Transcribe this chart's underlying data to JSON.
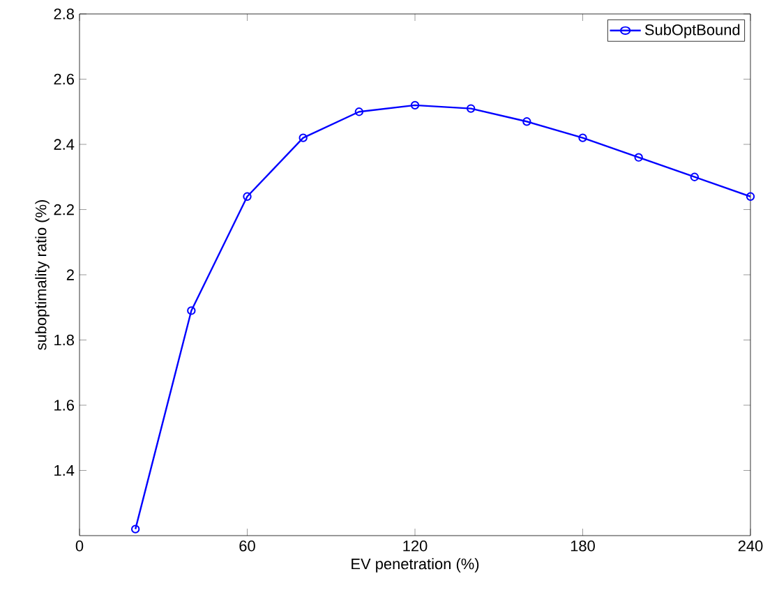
{
  "chart_data": {
    "type": "line",
    "xlabel": "EV penetration (%)",
    "ylabel": "suboptimality ratio (%)",
    "x": [
      20,
      40,
      60,
      80,
      100,
      120,
      140,
      160,
      180,
      200,
      220,
      240
    ],
    "series": [
      {
        "name": "SubOptBound",
        "color": "#0000ff",
        "values": [
          1.22,
          1.89,
          2.24,
          2.42,
          2.5,
          2.52,
          2.51,
          2.47,
          2.42,
          2.36,
          2.3,
          2.24
        ]
      }
    ],
    "xlim": [
      0,
      240
    ],
    "ylim": [
      1.2,
      2.8
    ],
    "xticks": [
      0,
      60,
      120,
      180,
      240
    ],
    "yticks": [
      1.4,
      1.6,
      1.8,
      2,
      2.2,
      2.4,
      2.6,
      2.8
    ],
    "legend": "top right",
    "marker": "circle",
    "line_style": "solid",
    "grid": false
  }
}
